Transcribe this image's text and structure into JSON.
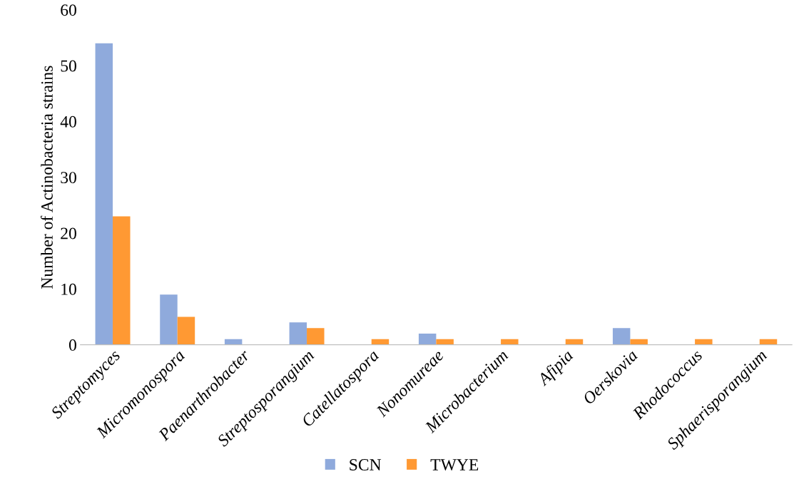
{
  "chart_data": {
    "type": "bar",
    "ylabel": "Number of Actinobacteria strains",
    "categories": [
      "Streptomyces",
      "Micromonospora",
      "Paenarthrobacter",
      "Streptosporangium",
      "Catellatospora",
      "Nonomureae",
      "Microbacterium",
      "Afipia",
      "Oerskovia",
      "Rhodococcus",
      "Sphaerisporangium"
    ],
    "series": [
      {
        "name": "SCN",
        "color": "#8faadc",
        "values": [
          54,
          9,
          1,
          4,
          0,
          2,
          0,
          0,
          3,
          0,
          0
        ]
      },
      {
        "name": "TWYE",
        "color": "#ff9933",
        "values": [
          23,
          5,
          0,
          3,
          1,
          1,
          1,
          1,
          1,
          1,
          1
        ]
      }
    ],
    "ylim": [
      0,
      60
    ],
    "yticks": [
      0,
      10,
      20,
      30,
      40,
      50,
      60
    ],
    "grid": false,
    "legend": "bottom"
  }
}
